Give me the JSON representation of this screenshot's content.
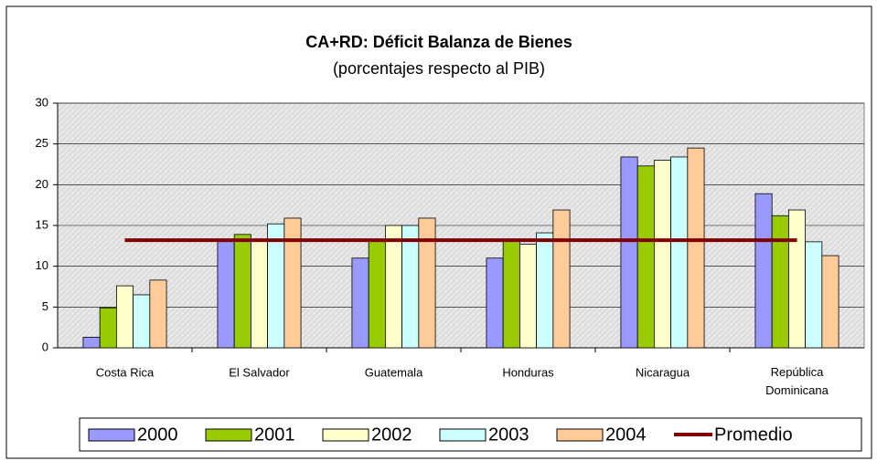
{
  "chart_data": {
    "type": "bar",
    "title": "CA+RD: Déficit Balanza de Bienes",
    "subtitle": "(porcentajes respecto al PIB)",
    "categories": [
      "Costa Rica",
      "El Salvador",
      "Guatemala",
      "Honduras",
      "Nicaragua",
      "República Dominicana"
    ],
    "series": [
      {
        "name": "2000",
        "color": "#9999ff",
        "values": [
          1.3,
          13.2,
          11.0,
          11.0,
          23.4,
          18.9
        ]
      },
      {
        "name": "2001",
        "color": "#99cc00",
        "values": [
          4.9,
          13.9,
          13.1,
          13.1,
          22.3,
          16.2
        ]
      },
      {
        "name": "2002",
        "color": "#ffffcc",
        "values": [
          7.6,
          13.3,
          15.0,
          12.7,
          23.0,
          16.9
        ]
      },
      {
        "name": "2003",
        "color": "#ccffff",
        "values": [
          6.5,
          15.2,
          15.0,
          14.1,
          23.4,
          13.0
        ]
      },
      {
        "name": "2004",
        "color": "#ffcc99",
        "values": [
          8.3,
          15.9,
          15.9,
          16.9,
          24.5,
          11.3
        ]
      },
      {
        "name": "Promedio",
        "type": "line",
        "color": "#800000",
        "values": [
          13.2,
          13.2,
          13.2,
          13.2,
          13.2,
          13.2
        ]
      }
    ],
    "ylim": [
      0,
      30
    ],
    "yticks": [
      0,
      5,
      10,
      15,
      20,
      25,
      30
    ],
    "grid": true,
    "legend": "bottom"
  }
}
